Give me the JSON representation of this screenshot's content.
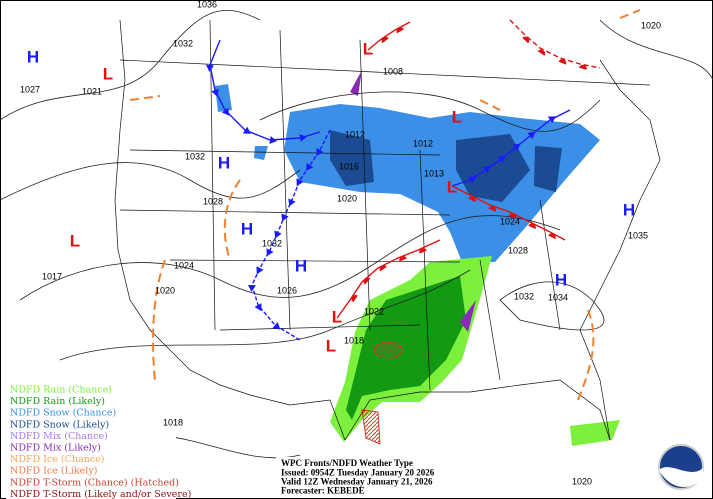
{
  "map": {
    "isobar_labels": [
      1036,
      1032,
      1027,
      1021,
      1008,
      1020,
      1012,
      1012,
      1032,
      1016,
      1013,
      1020,
      1028,
      1024,
      1032,
      1035,
      1028,
      1024,
      1017,
      1026,
      1020,
      1032,
      1034,
      1022,
      1018,
      1018,
      1020
    ],
    "high_labels": [
      "H",
      "H",
      "H",
      "H",
      "H",
      "H"
    ],
    "low_labels": [
      "L",
      "L",
      "L",
      "L",
      "L",
      "L",
      "L"
    ],
    "legend": [
      {
        "label": "NDFD Rain (Chance)",
        "color": "#7cf03c"
      },
      {
        "label": "NDFD Rain (Likely)",
        "color": "#129a12"
      },
      {
        "label": "NDFD Snow (Chance)",
        "color": "#3b8fe6"
      },
      {
        "label": "NDFD Snow (Likely)",
        "color": "#1b4b92"
      },
      {
        "label": "NDFD Mix (Chance)",
        "color": "#a77ae6"
      },
      {
        "label": "NDFD Mix (Likely)",
        "color": "#8a2bb8"
      },
      {
        "label": "NDFD Ice (Chance)",
        "color": "#f6a35a"
      },
      {
        "label": "NDFD Ice (Likely)",
        "color": "#f07a4a"
      },
      {
        "label": "NDFD T-Storm (Chance) (Hatched)",
        "color": "#c8402e"
      },
      {
        "label": "NDFD T-Storm (Likely and/or Severe)",
        "color": "#8c1010"
      }
    ],
    "footer": [
      "WPC Fronts/NDFD Weather Type",
      "Issued: 0954Z Tuesday January 20 2026",
      "Valid 12Z Wednesday January 21, 2026",
      "Forecaster: KEBEDE"
    ]
  }
}
